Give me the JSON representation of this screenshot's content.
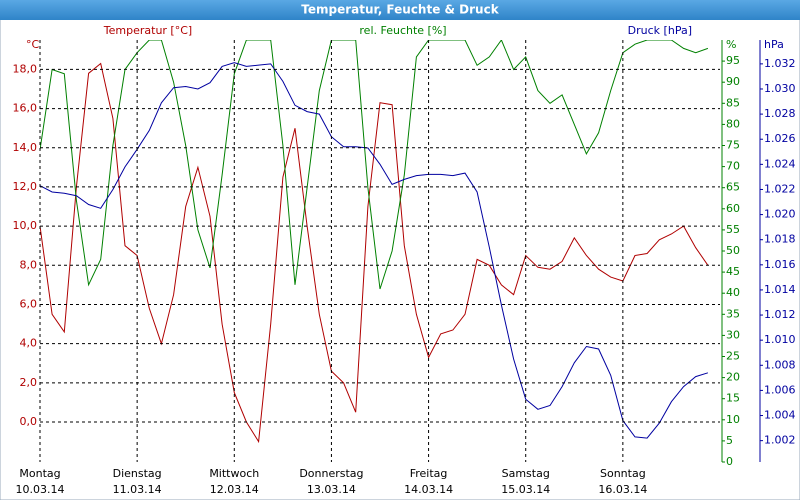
{
  "chart_data": {
    "type": "line",
    "title": "Temperatur, Feuchte & Druck",
    "x": [
      0,
      3,
      6,
      9,
      12,
      15,
      18,
      21,
      24,
      27,
      30,
      33,
      36,
      39,
      42,
      45,
      48,
      51,
      54,
      57,
      60,
      63,
      66,
      69,
      72,
      75,
      78,
      81,
      84,
      87,
      90,
      93,
      96,
      99,
      102,
      105,
      108,
      111,
      114,
      117,
      120,
      123,
      126,
      129,
      132,
      135,
      138,
      141,
      144,
      147,
      150,
      153,
      156,
      159,
      162,
      165
    ],
    "xlim": [
      0,
      168
    ],
    "xticks": [
      {
        "value": 0,
        "label": "Montag",
        "sublabel": "10.03.14"
      },
      {
        "value": 24,
        "label": "Dienstag",
        "sublabel": "11.03.14"
      },
      {
        "value": 48,
        "label": "Mittwoch",
        "sublabel": "12.03.14"
      },
      {
        "value": 72,
        "label": "Donnerstag",
        "sublabel": "13.03.14"
      },
      {
        "value": 96,
        "label": "Freitag",
        "sublabel": "14.03.14"
      },
      {
        "value": 120,
        "label": "Samstag",
        "sublabel": "15.03.14"
      },
      {
        "value": 144,
        "label": "Sonntag",
        "sublabel": "16.03.14"
      }
    ],
    "y_unit": "°C",
    "ylim": [
      -2.04,
      19.5
    ],
    "yticks": [
      {
        "value": 0,
        "label": "0,0"
      },
      {
        "value": 2,
        "label": "2,0"
      },
      {
        "value": 4,
        "label": "4,0"
      },
      {
        "value": 6,
        "label": "6,0"
      },
      {
        "value": 8,
        "label": "8,0"
      },
      {
        "value": 10,
        "label": "10,0"
      },
      {
        "value": 12,
        "label": "12,0"
      },
      {
        "value": 14,
        "label": "14,0"
      },
      {
        "value": 16,
        "label": "16,0"
      },
      {
        "value": 18,
        "label": "18,0"
      }
    ],
    "y2_unit": "%",
    "y2lim": [
      0,
      100
    ],
    "y2ticks": [
      0,
      5,
      10,
      15,
      20,
      25,
      30,
      35,
      40,
      45,
      50,
      55,
      60,
      65,
      70,
      75,
      80,
      85,
      90,
      95
    ],
    "y3_unit": "hPa",
    "y3lim": [
      1.0003,
      1.0339
    ],
    "y3ticks": [
      1.002,
      1.004,
      1.006,
      1.008,
      {
        "value": 1.01,
        "label": "1.010"
      },
      1.012,
      1.014,
      1.016,
      1.018,
      {
        "value": 1.02,
        "label": "1.020"
      },
      1.022,
      1.024,
      1.026,
      1.028,
      {
        "value": 1.03,
        "label": "1.030"
      },
      1.032
    ],
    "grid": true,
    "series": [
      {
        "name": "Temperatur [°C]",
        "color": "#b00000",
        "axis": "y",
        "values": [
          10.0,
          5.5,
          4.6,
          12,
          17.8,
          18.3,
          15.5,
          9.0,
          8.5,
          5.8,
          4.0,
          6.5,
          11,
          13.0,
          10.5,
          5.0,
          1.5,
          0.0,
          -1.0,
          5,
          12.5,
          15.0,
          10,
          5.5,
          2.6,
          2.0,
          0.5,
          11,
          16.3,
          16.2,
          9,
          5.5,
          3.3,
          4.5,
          4.7,
          5.5,
          8.3,
          8.0,
          7.0,
          6.5,
          8.5,
          7.9,
          7.8,
          8.2,
          9.4,
          8.5,
          7.8,
          7.4,
          7.2,
          8.5,
          8.6,
          9.3,
          9.6,
          10.0,
          8.9,
          8.0
        ]
      },
      {
        "name": "rel. Feuchte [%]",
        "color": "#008000",
        "axis": "y2",
        "values": [
          74,
          93,
          92,
          62,
          42,
          48,
          75,
          93,
          97,
          100,
          100,
          90,
          75,
          55,
          46,
          68,
          92,
          100,
          100,
          100,
          75,
          42,
          65,
          88,
          100,
          100,
          100,
          65,
          41,
          50,
          68,
          96,
          100,
          100,
          100,
          100,
          94,
          96,
          100,
          93,
          96,
          88,
          85,
          87,
          80,
          73,
          78,
          88,
          97,
          99,
          100,
          100,
          100,
          98,
          97,
          98
        ]
      },
      {
        "name": "Druck [hPa]",
        "color": "#0000a0",
        "axis": "y3",
        "values": [
          1.0223,
          1.0218,
          1.0217,
          1.0215,
          1.0208,
          1.0205,
          1.022,
          1.0238,
          1.0252,
          1.0267,
          1.0289,
          1.0301,
          1.0302,
          1.03,
          1.0305,
          1.0318,
          1.0321,
          1.0318,
          1.0319,
          1.032,
          1.0306,
          1.0287,
          1.0282,
          1.028,
          1.0262,
          1.0254,
          1.0254,
          1.0253,
          1.024,
          1.0224,
          1.0228,
          1.0231,
          1.0232,
          1.0232,
          1.0231,
          1.0233,
          1.0218,
          1.0174,
          1.0128,
          1.0085,
          1.0053,
          1.0045,
          1.0048,
          1.0063,
          1.0082,
          1.0095,
          1.0093,
          1.0072,
          1.0036,
          1.0023,
          1.0022,
          1.0034,
          1.0051,
          1.0063,
          1.0071,
          1.0074
        ]
      }
    ]
  }
}
